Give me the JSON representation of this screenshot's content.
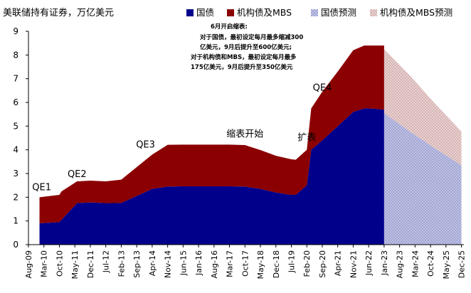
{
  "chart_data": {
    "type": "area",
    "title": "美联储持有证券，万亿美元",
    "ylim": [
      0,
      9
    ],
    "yticks": [
      "0",
      "1",
      "2",
      "3",
      "4",
      "5",
      "6",
      "7",
      "8",
      "9"
    ],
    "xticks": [
      "Aug-09",
      "Mar-10",
      "Oct-10",
      "May-11",
      "Dec-11",
      "Jul-12",
      "Feb-13",
      "Sep-13",
      "Apr-14",
      "Nov-14",
      "Jun-15",
      "Jan-16",
      "Aug-16",
      "Mar-17",
      "Oct-17",
      "May-18",
      "Dec-18",
      "Jul-19",
      "Feb-20",
      "Sep-20",
      "Apr-21",
      "Nov-21",
      "Jun-22",
      "Jan-23",
      "Aug-23",
      "Mar-24",
      "Oct-24",
      "May-25",
      "Dec-25"
    ],
    "legend": [
      "国债",
      "机构债及MBS",
      "国债预测",
      "机构债及MBS预测"
    ],
    "colors": {
      "treasury": "#00008b",
      "mbs": "#8b0000",
      "treasury_forecast": "#b3b5d9",
      "mbs_forecast": "#dcc0c0"
    },
    "series": [
      {
        "name": "国债",
        "x": [
          "Jan-10",
          "Oct-10",
          "Nov-10",
          "Jun-11",
          "Dec-11",
          "Jul-12",
          "Feb-13",
          "Apr-14",
          "Nov-14",
          "Jun-15",
          "Jan-16",
          "Aug-16",
          "Mar-17",
          "Oct-17",
          "May-18",
          "Dec-18",
          "Jul-19",
          "Sep-19",
          "Feb-20",
          "Apr-20",
          "Sep-20",
          "Apr-21",
          "Nov-21",
          "Apr-22",
          "Jun-22",
          "Jan-23"
        ],
        "values": [
          0.9,
          0.95,
          1.05,
          1.75,
          1.78,
          1.75,
          1.76,
          2.35,
          2.45,
          2.46,
          2.46,
          2.46,
          2.46,
          2.45,
          2.35,
          2.2,
          2.1,
          2.1,
          2.5,
          4.0,
          4.4,
          5.0,
          5.6,
          5.75,
          5.75,
          5.7
        ]
      },
      {
        "name": "机构债及MBS",
        "x": [
          "Jan-10",
          "Oct-10",
          "Nov-10",
          "Jun-11",
          "Dec-11",
          "Jul-12",
          "Feb-13",
          "Apr-14",
          "Nov-14",
          "Jun-15",
          "Jan-16",
          "Aug-16",
          "Mar-17",
          "Oct-17",
          "May-18",
          "Dec-18",
          "Jul-19",
          "Sep-19",
          "Feb-20",
          "Apr-20",
          "Sep-20",
          "Apr-21",
          "Nov-21",
          "Apr-22",
          "Jun-22",
          "Jan-23"
        ],
        "values": [
          1.1,
          1.15,
          1.2,
          0.92,
          0.92,
          0.92,
          0.98,
          1.45,
          1.76,
          1.76,
          1.76,
          1.76,
          1.76,
          1.75,
          1.64,
          1.55,
          1.5,
          1.48,
          1.5,
          1.75,
          2.05,
          2.3,
          2.6,
          2.65,
          2.65,
          2.7
        ]
      },
      {
        "name": "国债预测",
        "x": [
          "Jan-23",
          "Jan-24",
          "Jan-25",
          "Dec-25"
        ],
        "values": [
          5.55,
          4.75,
          4.0,
          3.35
        ]
      },
      {
        "name": "机构债及MBS预测",
        "x": [
          "Jan-23",
          "Jan-24",
          "Jan-25",
          "Dec-25"
        ],
        "values": [
          2.7,
          2.35,
          1.85,
          1.42
        ]
      }
    ],
    "annotations": [
      {
        "text": "QE1",
        "x": "Feb-10",
        "y": 2.3
      },
      {
        "text": "QE2",
        "x": "Jun-11",
        "y": 2.85
      },
      {
        "text": "QE3",
        "x": "Jan-14",
        "y": 4.1
      },
      {
        "text": "缩表开始",
        "x": "Oct-17",
        "y": 4.55
      },
      {
        "text": "扩表",
        "x": "Feb-20",
        "y": 4.4
      },
      {
        "text": "QE4",
        "x": "Sep-20",
        "y": 6.5
      }
    ],
    "note_lines": [
      "6月开启缩表:",
      "对于国债，最初设定每月最多缩减300",
      "亿美元，9月后提升至600亿美元;",
      "对于机构债和MBS，最初设定每月最多",
      "175亿美元，9月后提升至350亿美元"
    ]
  }
}
